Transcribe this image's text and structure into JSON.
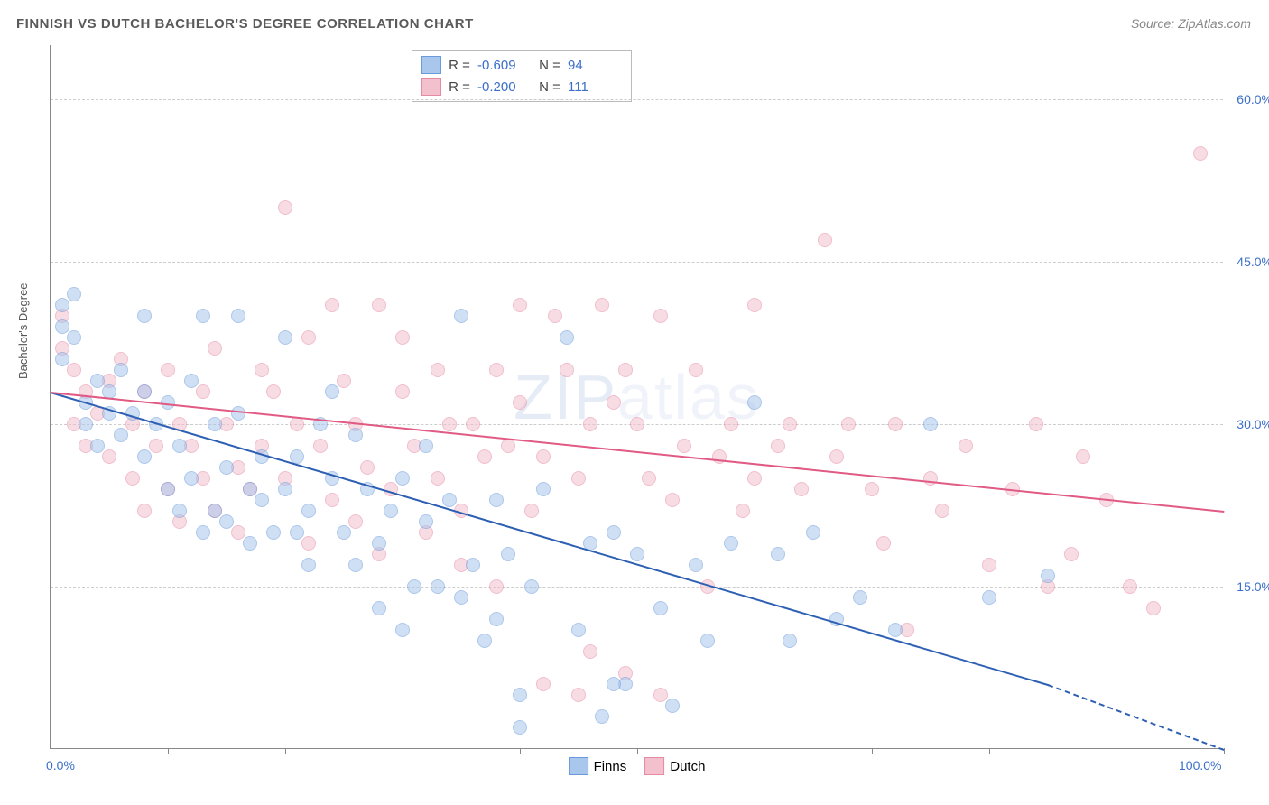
{
  "title": "FINNISH VS DUTCH BACHELOR'S DEGREE CORRELATION CHART",
  "source": "Source: ZipAtlas.com",
  "ylabel": "Bachelor's Degree",
  "watermark_bold": "ZIP",
  "watermark_light": "atlas",
  "chart": {
    "type": "scatter",
    "x_min": 0,
    "x_max": 100,
    "y_min": 0,
    "y_max": 65,
    "x_ticks": [
      0,
      10,
      20,
      30,
      40,
      50,
      60,
      70,
      80,
      90,
      100
    ],
    "x_tick_labels_shown": {
      "0": "0.0%",
      "100": "100.0%"
    },
    "y_gridlines": [
      15,
      30,
      45,
      60
    ],
    "y_tick_labels": {
      "15": "15.0%",
      "30": "30.0%",
      "45": "45.0%",
      "60": "60.0%"
    },
    "point_radius": 8,
    "point_opacity": 0.55,
    "background_color": "#ffffff",
    "grid_color": "#cccccc",
    "axis_color": "#888888",
    "value_color": "#3b6fc9",
    "series": [
      {
        "name": "Finns",
        "fill": "#a9c6ec",
        "stroke": "#6a9adb",
        "line_color": "#2d5fb3",
        "R": "-0.609",
        "N": "94",
        "trend": {
          "x1": 0,
          "y1": 33,
          "x2": 85,
          "y2": 6,
          "dash_to_x": 100,
          "dash_to_y": 0
        },
        "points": [
          [
            1,
            41
          ],
          [
            1,
            39
          ],
          [
            2,
            38
          ],
          [
            1,
            36
          ],
          [
            2,
            42
          ],
          [
            3,
            32
          ],
          [
            3,
            30
          ],
          [
            4,
            34
          ],
          [
            5,
            33
          ],
          [
            4,
            28
          ],
          [
            5,
            31
          ],
          [
            6,
            35
          ],
          [
            7,
            31
          ],
          [
            6,
            29
          ],
          [
            8,
            40
          ],
          [
            8,
            33
          ],
          [
            8,
            27
          ],
          [
            9,
            30
          ],
          [
            10,
            32
          ],
          [
            10,
            24
          ],
          [
            11,
            28
          ],
          [
            11,
            22
          ],
          [
            12,
            34
          ],
          [
            12,
            25
          ],
          [
            13,
            40
          ],
          [
            13,
            20
          ],
          [
            14,
            30
          ],
          [
            14,
            22
          ],
          [
            15,
            21
          ],
          [
            15,
            26
          ],
          [
            16,
            40
          ],
          [
            16,
            31
          ],
          [
            17,
            24
          ],
          [
            17,
            19
          ],
          [
            18,
            23
          ],
          [
            18,
            27
          ],
          [
            19,
            20
          ],
          [
            20,
            38
          ],
          [
            20,
            24
          ],
          [
            21,
            27
          ],
          [
            21,
            20
          ],
          [
            22,
            17
          ],
          [
            22,
            22
          ],
          [
            23,
            30
          ],
          [
            24,
            33
          ],
          [
            24,
            25
          ],
          [
            25,
            20
          ],
          [
            26,
            29
          ],
          [
            26,
            17
          ],
          [
            27,
            24
          ],
          [
            28,
            19
          ],
          [
            28,
            13
          ],
          [
            29,
            22
          ],
          [
            30,
            25
          ],
          [
            30,
            11
          ],
          [
            31,
            15
          ],
          [
            32,
            21
          ],
          [
            32,
            28
          ],
          [
            33,
            15
          ],
          [
            34,
            23
          ],
          [
            35,
            40
          ],
          [
            35,
            14
          ],
          [
            36,
            17
          ],
          [
            37,
            10
          ],
          [
            38,
            23
          ],
          [
            38,
            12
          ],
          [
            39,
            18
          ],
          [
            40,
            5
          ],
          [
            40,
            2
          ],
          [
            41,
            15
          ],
          [
            42,
            24
          ],
          [
            44,
            38
          ],
          [
            45,
            11
          ],
          [
            46,
            19
          ],
          [
            47,
            3
          ],
          [
            48,
            20
          ],
          [
            49,
            6
          ],
          [
            50,
            18
          ],
          [
            52,
            13
          ],
          [
            53,
            4
          ],
          [
            55,
            17
          ],
          [
            56,
            10
          ],
          [
            58,
            19
          ],
          [
            60,
            32
          ],
          [
            62,
            18
          ],
          [
            63,
            10
          ],
          [
            65,
            20
          ],
          [
            67,
            12
          ],
          [
            69,
            14
          ],
          [
            72,
            11
          ],
          [
            75,
            30
          ],
          [
            80,
            14
          ],
          [
            85,
            16
          ],
          [
            48,
            6
          ]
        ]
      },
      {
        "name": "Dutch",
        "fill": "#f3c0cd",
        "stroke": "#e68aa3",
        "line_color": "#e05a84",
        "R": "-0.200",
        "N": "111",
        "trend": {
          "x1": 0,
          "y1": 33,
          "x2": 100,
          "y2": 22
        },
        "points": [
          [
            1,
            40
          ],
          [
            1,
            37
          ],
          [
            2,
            35
          ],
          [
            2,
            30
          ],
          [
            3,
            33
          ],
          [
            3,
            28
          ],
          [
            4,
            31
          ],
          [
            5,
            34
          ],
          [
            5,
            27
          ],
          [
            6,
            36
          ],
          [
            7,
            30
          ],
          [
            7,
            25
          ],
          [
            8,
            33
          ],
          [
            8,
            22
          ],
          [
            9,
            28
          ],
          [
            10,
            35
          ],
          [
            10,
            24
          ],
          [
            11,
            30
          ],
          [
            11,
            21
          ],
          [
            12,
            28
          ],
          [
            13,
            33
          ],
          [
            13,
            25
          ],
          [
            14,
            37
          ],
          [
            14,
            22
          ],
          [
            15,
            30
          ],
          [
            16,
            26
          ],
          [
            16,
            20
          ],
          [
            17,
            24
          ],
          [
            18,
            35
          ],
          [
            18,
            28
          ],
          [
            19,
            33
          ],
          [
            20,
            50
          ],
          [
            20,
            25
          ],
          [
            21,
            30
          ],
          [
            22,
            38
          ],
          [
            22,
            19
          ],
          [
            23,
            28
          ],
          [
            24,
            41
          ],
          [
            24,
            23
          ],
          [
            25,
            34
          ],
          [
            26,
            30
          ],
          [
            26,
            21
          ],
          [
            27,
            26
          ],
          [
            28,
            41
          ],
          [
            28,
            18
          ],
          [
            29,
            24
          ],
          [
            30,
            33
          ],
          [
            30,
            38
          ],
          [
            31,
            28
          ],
          [
            32,
            20
          ],
          [
            33,
            35
          ],
          [
            33,
            25
          ],
          [
            34,
            30
          ],
          [
            35,
            17
          ],
          [
            35,
            22
          ],
          [
            36,
            30
          ],
          [
            37,
            27
          ],
          [
            38,
            35
          ],
          [
            38,
            15
          ],
          [
            39,
            28
          ],
          [
            40,
            41
          ],
          [
            40,
            32
          ],
          [
            41,
            22
          ],
          [
            42,
            27
          ],
          [
            43,
            40
          ],
          [
            44,
            35
          ],
          [
            45,
            25
          ],
          [
            46,
            30
          ],
          [
            46,
            9
          ],
          [
            47,
            41
          ],
          [
            48,
            32
          ],
          [
            49,
            35
          ],
          [
            49,
            7
          ],
          [
            50,
            30
          ],
          [
            51,
            25
          ],
          [
            52,
            40
          ],
          [
            53,
            23
          ],
          [
            54,
            28
          ],
          [
            55,
            35
          ],
          [
            56,
            15
          ],
          [
            57,
            27
          ],
          [
            58,
            30
          ],
          [
            59,
            22
          ],
          [
            60,
            41
          ],
          [
            62,
            28
          ],
          [
            63,
            30
          ],
          [
            64,
            24
          ],
          [
            66,
            47
          ],
          [
            67,
            27
          ],
          [
            68,
            30
          ],
          [
            70,
            24
          ],
          [
            71,
            19
          ],
          [
            72,
            30
          ],
          [
            73,
            11
          ],
          [
            75,
            25
          ],
          [
            76,
            22
          ],
          [
            78,
            28
          ],
          [
            80,
            17
          ],
          [
            82,
            24
          ],
          [
            84,
            30
          ],
          [
            85,
            15
          ],
          [
            87,
            18
          ],
          [
            88,
            27
          ],
          [
            90,
            23
          ],
          [
            92,
            15
          ],
          [
            94,
            13
          ],
          [
            98,
            55
          ],
          [
            60,
            25
          ],
          [
            42,
            6
          ],
          [
            52,
            5
          ],
          [
            45,
            5
          ]
        ]
      }
    ],
    "legend_bottom": [
      "Finns",
      "Dutch"
    ]
  }
}
